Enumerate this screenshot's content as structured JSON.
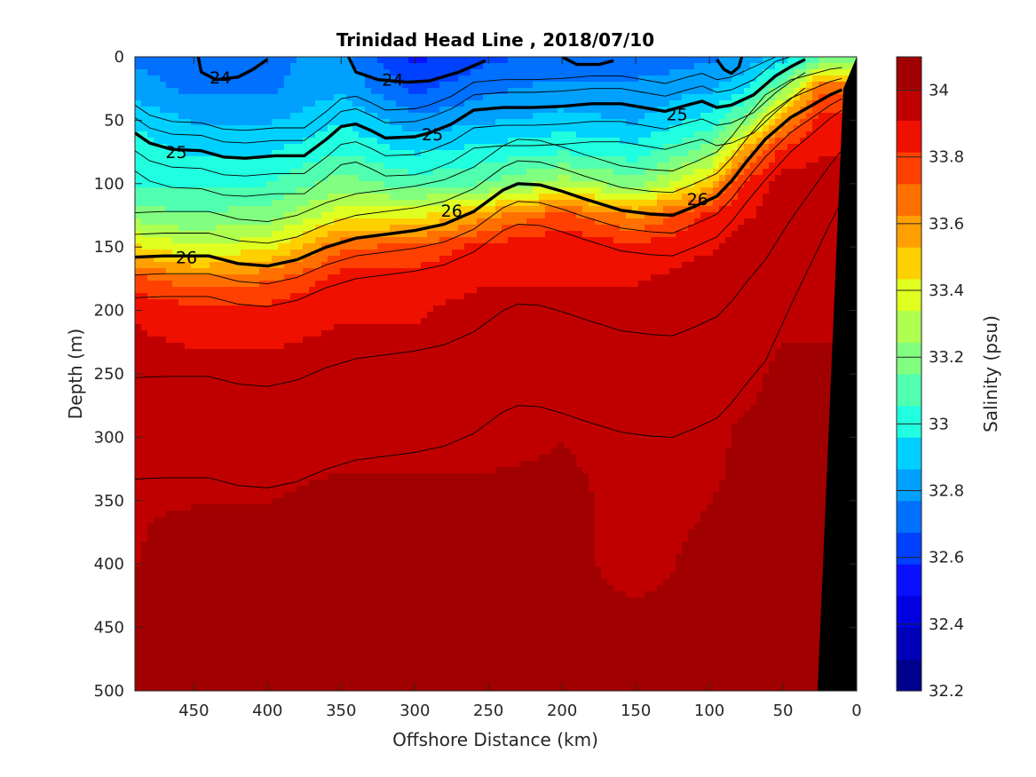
{
  "chart_data": {
    "type": "heatmap",
    "title": "Trinidad Head Line , 2018/07/10",
    "xlabel": "Offshore Distance (km)",
    "ylabel": "Depth (m)",
    "colorbar_label": "Salinity (psu)",
    "xlim": [
      490,
      0
    ],
    "ylim": [
      0,
      500
    ],
    "x_ticks": [
      "450",
      "400",
      "350",
      "300",
      "250",
      "200",
      "150",
      "100",
      "50",
      "0"
    ],
    "x_tick_values": [
      450,
      400,
      350,
      300,
      250,
      200,
      150,
      100,
      50,
      0
    ],
    "y_ticks": [
      "0",
      "50",
      "100",
      "150",
      "200",
      "250",
      "300",
      "350",
      "400",
      "450",
      "500"
    ],
    "y_tick_values": [
      0,
      50,
      100,
      150,
      200,
      250,
      300,
      350,
      400,
      450,
      500
    ],
    "colorbar_ticks": [
      "32.2",
      "32.4",
      "32.6",
      "32.8",
      "33",
      "33.2",
      "33.4",
      "33.6",
      "33.8",
      "34"
    ],
    "colorbar_tick_values": [
      32.2,
      32.4,
      32.6,
      32.8,
      33.0,
      33.2,
      33.4,
      33.6,
      33.8,
      34.0
    ],
    "colorbar_range": [
      32.2,
      34.1
    ],
    "colorbar_levels": [
      "#00008f",
      "#0000b8",
      "#0000e0",
      "#0a10ff",
      "#0040ff",
      "#0070ff",
      "#00a0ff",
      "#00d0ff",
      "#20ffdf",
      "#50ffaf",
      "#80ff80",
      "#afff50",
      "#dfff20",
      "#ffd000",
      "#ffa000",
      "#ff7000",
      "#ff4000",
      "#ef1000",
      "#c00000",
      "#a00000"
    ],
    "grid": false,
    "salinity_profile": {
      "depths": [
        0,
        25,
        50,
        75,
        100,
        125,
        150,
        175,
        200,
        250,
        300,
        350,
        400,
        450,
        500
      ],
      "distances": [
        490,
        450,
        400,
        350,
        300,
        250,
        200,
        150,
        100,
        75,
        50,
        25
      ],
      "values": [
        [
          32.75,
          32.75,
          32.75,
          32.8,
          32.55,
          32.65,
          32.7,
          32.7,
          32.75,
          32.8,
          32.9,
          33.1
        ],
        [
          32.8,
          32.75,
          32.75,
          32.85,
          32.65,
          32.75,
          32.8,
          32.8,
          32.85,
          32.95,
          33.2,
          33.7
        ],
        [
          32.95,
          32.85,
          32.85,
          32.95,
          32.8,
          32.85,
          32.9,
          32.85,
          33.0,
          33.2,
          33.6,
          33.85
        ],
        [
          33.0,
          32.95,
          32.95,
          33.05,
          32.95,
          33.0,
          33.05,
          33.0,
          33.2,
          33.6,
          33.85,
          33.9
        ],
        [
          33.05,
          33.05,
          33.05,
          33.2,
          33.1,
          33.15,
          33.3,
          33.2,
          33.5,
          33.85,
          33.95,
          33.95
        ],
        [
          33.2,
          33.15,
          33.2,
          33.4,
          33.4,
          33.6,
          33.75,
          33.6,
          33.85,
          33.9,
          33.95,
          33.95
        ],
        [
          33.45,
          33.35,
          33.4,
          33.7,
          33.75,
          33.85,
          33.9,
          33.85,
          33.9,
          33.95,
          33.95,
          33.95
        ],
        [
          33.75,
          33.65,
          33.7,
          33.85,
          33.85,
          33.9,
          33.9,
          33.9,
          33.95,
          33.95,
          33.95,
          33.95
        ],
        [
          33.9,
          33.85,
          33.85,
          33.9,
          33.9,
          33.95,
          33.95,
          33.95,
          33.95,
          33.95,
          33.95,
          33.95
        ],
        [
          33.95,
          33.95,
          33.95,
          33.95,
          33.95,
          33.95,
          33.95,
          33.95,
          33.95,
          33.95,
          34.05,
          34.05
        ],
        [
          33.95,
          33.95,
          33.95,
          33.95,
          33.95,
          33.95,
          34.0,
          33.95,
          33.95,
          34.05,
          34.05,
          34.05
        ],
        [
          34.0,
          34.0,
          34.0,
          34.05,
          34.05,
          34.05,
          34.05,
          33.95,
          34.0,
          34.05,
          34.05,
          34.05
        ],
        [
          34.0,
          34.05,
          34.05,
          34.05,
          34.05,
          34.05,
          34.05,
          33.95,
          34.05,
          34.05,
          34.05,
          34.05
        ],
        [
          34.05,
          34.05,
          34.05,
          34.05,
          34.05,
          34.05,
          34.05,
          34.05,
          34.05,
          34.05,
          34.05,
          34.05
        ],
        [
          34.05,
          34.05,
          34.05,
          34.05,
          34.1,
          34.1,
          34.05,
          34.05,
          34.1,
          34.05,
          34.05,
          34.05
        ]
      ]
    },
    "isopycnals": [
      {
        "label": "24",
        "segments": [
          [
            [
              447,
              0
            ],
            [
              445,
              12
            ],
            [
              435,
              18
            ],
            [
              420,
              16
            ],
            [
              410,
              10
            ],
            [
              400,
              2
            ]
          ],
          [
            [
              345,
              0
            ],
            [
              340,
              12
            ],
            [
              325,
              18
            ],
            [
              305,
              20
            ],
            [
              290,
              19
            ],
            [
              270,
              12
            ],
            [
              252,
              3
            ]
          ],
          [
            [
              200,
              0
            ],
            [
              190,
              6
            ],
            [
              175,
              6
            ],
            [
              165,
              3
            ]
          ],
          [
            [
              95,
              2
            ],
            [
              90,
              10
            ],
            [
              85,
              13
            ],
            [
              80,
              8
            ],
            [
              78,
              0
            ]
          ]
        ],
        "label_positions": [
          [
            432,
            16
          ],
          [
            315,
            18
          ]
        ]
      },
      {
        "label": "25",
        "segments": [
          [
            [
              490,
              60
            ],
            [
              480,
              68
            ],
            [
              465,
              73
            ],
            [
              445,
              74
            ],
            [
              430,
              79
            ],
            [
              415,
              80
            ],
            [
              395,
              78
            ],
            [
              375,
              78
            ],
            [
              360,
              65
            ],
            [
              350,
              55
            ],
            [
              340,
              53
            ],
            [
              330,
              58
            ],
            [
              320,
              64
            ],
            [
              300,
              63
            ],
            [
              290,
              60
            ],
            [
              275,
              53
            ],
            [
              260,
              42
            ],
            [
              240,
              40
            ],
            [
              220,
              40
            ],
            [
              200,
              39
            ],
            [
              180,
              37
            ],
            [
              160,
              37
            ],
            [
              145,
              40
            ],
            [
              130,
              43
            ],
            [
              115,
              38
            ],
            [
              105,
              35
            ],
            [
              95,
              40
            ],
            [
              85,
              38
            ],
            [
              70,
              30
            ],
            [
              55,
              15
            ],
            [
              45,
              8
            ],
            [
              35,
              2
            ]
          ]
        ],
        "label_positions": [
          [
            462,
            75
          ],
          [
            288,
            61
          ],
          [
            122,
            45
          ]
        ]
      },
      {
        "label": "26",
        "segments": [
          [
            [
              490,
              158
            ],
            [
              470,
              157
            ],
            [
              440,
              157
            ],
            [
              420,
              163
            ],
            [
              400,
              165
            ],
            [
              380,
              160
            ],
            [
              360,
              150
            ],
            [
              340,
              143
            ],
            [
              320,
              140
            ],
            [
              300,
              137
            ],
            [
              280,
              132
            ],
            [
              260,
              122
            ],
            [
              240,
              105
            ],
            [
              230,
              100
            ],
            [
              215,
              101
            ],
            [
              200,
              106
            ],
            [
              185,
              112
            ],
            [
              160,
              121
            ],
            [
              140,
              124
            ],
            [
              125,
              125
            ],
            [
              110,
              118
            ],
            [
              95,
              110
            ],
            [
              85,
              98
            ],
            [
              75,
              83
            ],
            [
              62,
              65
            ],
            [
              45,
              48
            ],
            [
              30,
              38
            ],
            [
              18,
              30
            ],
            [
              10,
              26
            ]
          ]
        ],
        "label_positions": [
          [
            455,
            158
          ],
          [
            275,
            121
          ],
          [
            108,
            112
          ]
        ]
      }
    ]
  }
}
